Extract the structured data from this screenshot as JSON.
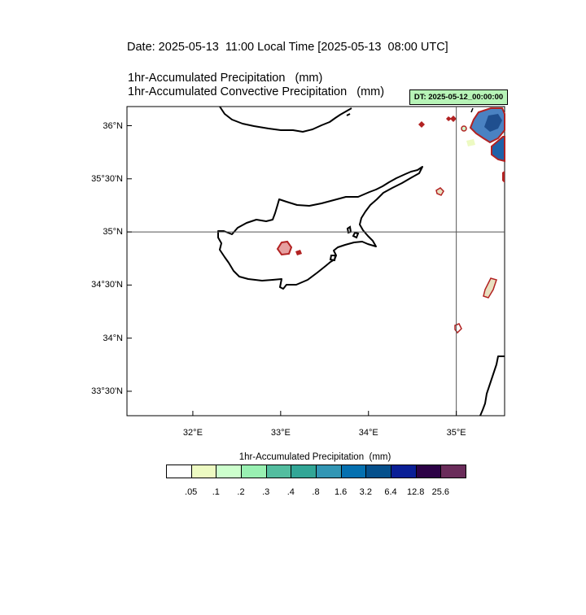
{
  "header": {
    "date_line": "Date: 2025-05-13  11:00 Local Time [2025-05-13  08:00 UTC]",
    "var1": "1hr-Accumulated Precipitation   (mm)",
    "var2": "1hr-Accumulated Convective Precipitation   (mm)",
    "dt_badge": "DT: 2025-05-12_00:00:00"
  },
  "axes": {
    "lon_range": [
      31.25,
      35.55
    ],
    "lat_range": [
      33.27,
      36.18
    ],
    "x_ticks": [
      {
        "value": 32,
        "label": "32°E"
      },
      {
        "value": 33,
        "label": "33°E"
      },
      {
        "value": 34,
        "label": "34°E"
      },
      {
        "value": 35,
        "label": "35°E"
      }
    ],
    "y_ticks": [
      {
        "value": 36,
        "label": "36°N"
      },
      {
        "value": 35.5,
        "label": "35°30'N"
      },
      {
        "value": 35,
        "label": "35°N"
      },
      {
        "value": 34.5,
        "label": "34°30'N"
      },
      {
        "value": 34,
        "label": "34°N"
      },
      {
        "value": 33.5,
        "label": "33°30'N"
      }
    ],
    "reference_lines": {
      "lon": 35,
      "lat": 35
    }
  },
  "colorbar": {
    "title": "1hr-Accumulated Precipitation  (mm)",
    "levels": [
      ".05",
      ".1",
      ".2",
      ".3",
      ".4",
      ".8",
      "1.6",
      "3.2",
      "6.4",
      "12.8",
      "25.6"
    ],
    "colors": [
      "#ffffff",
      "#edfac2",
      "#cdffcd",
      "#99f0b2",
      "#53bd9f",
      "#32a696",
      "#3296b4",
      "#0570b0",
      "#05508c",
      "#0a1f96",
      "#2c0246",
      "#6a2c5a"
    ]
  },
  "colors": {
    "convective_contour": "#b22222",
    "rain_fill": "#3a78b8",
    "coast": "#000000",
    "grid": "#666666"
  }
}
